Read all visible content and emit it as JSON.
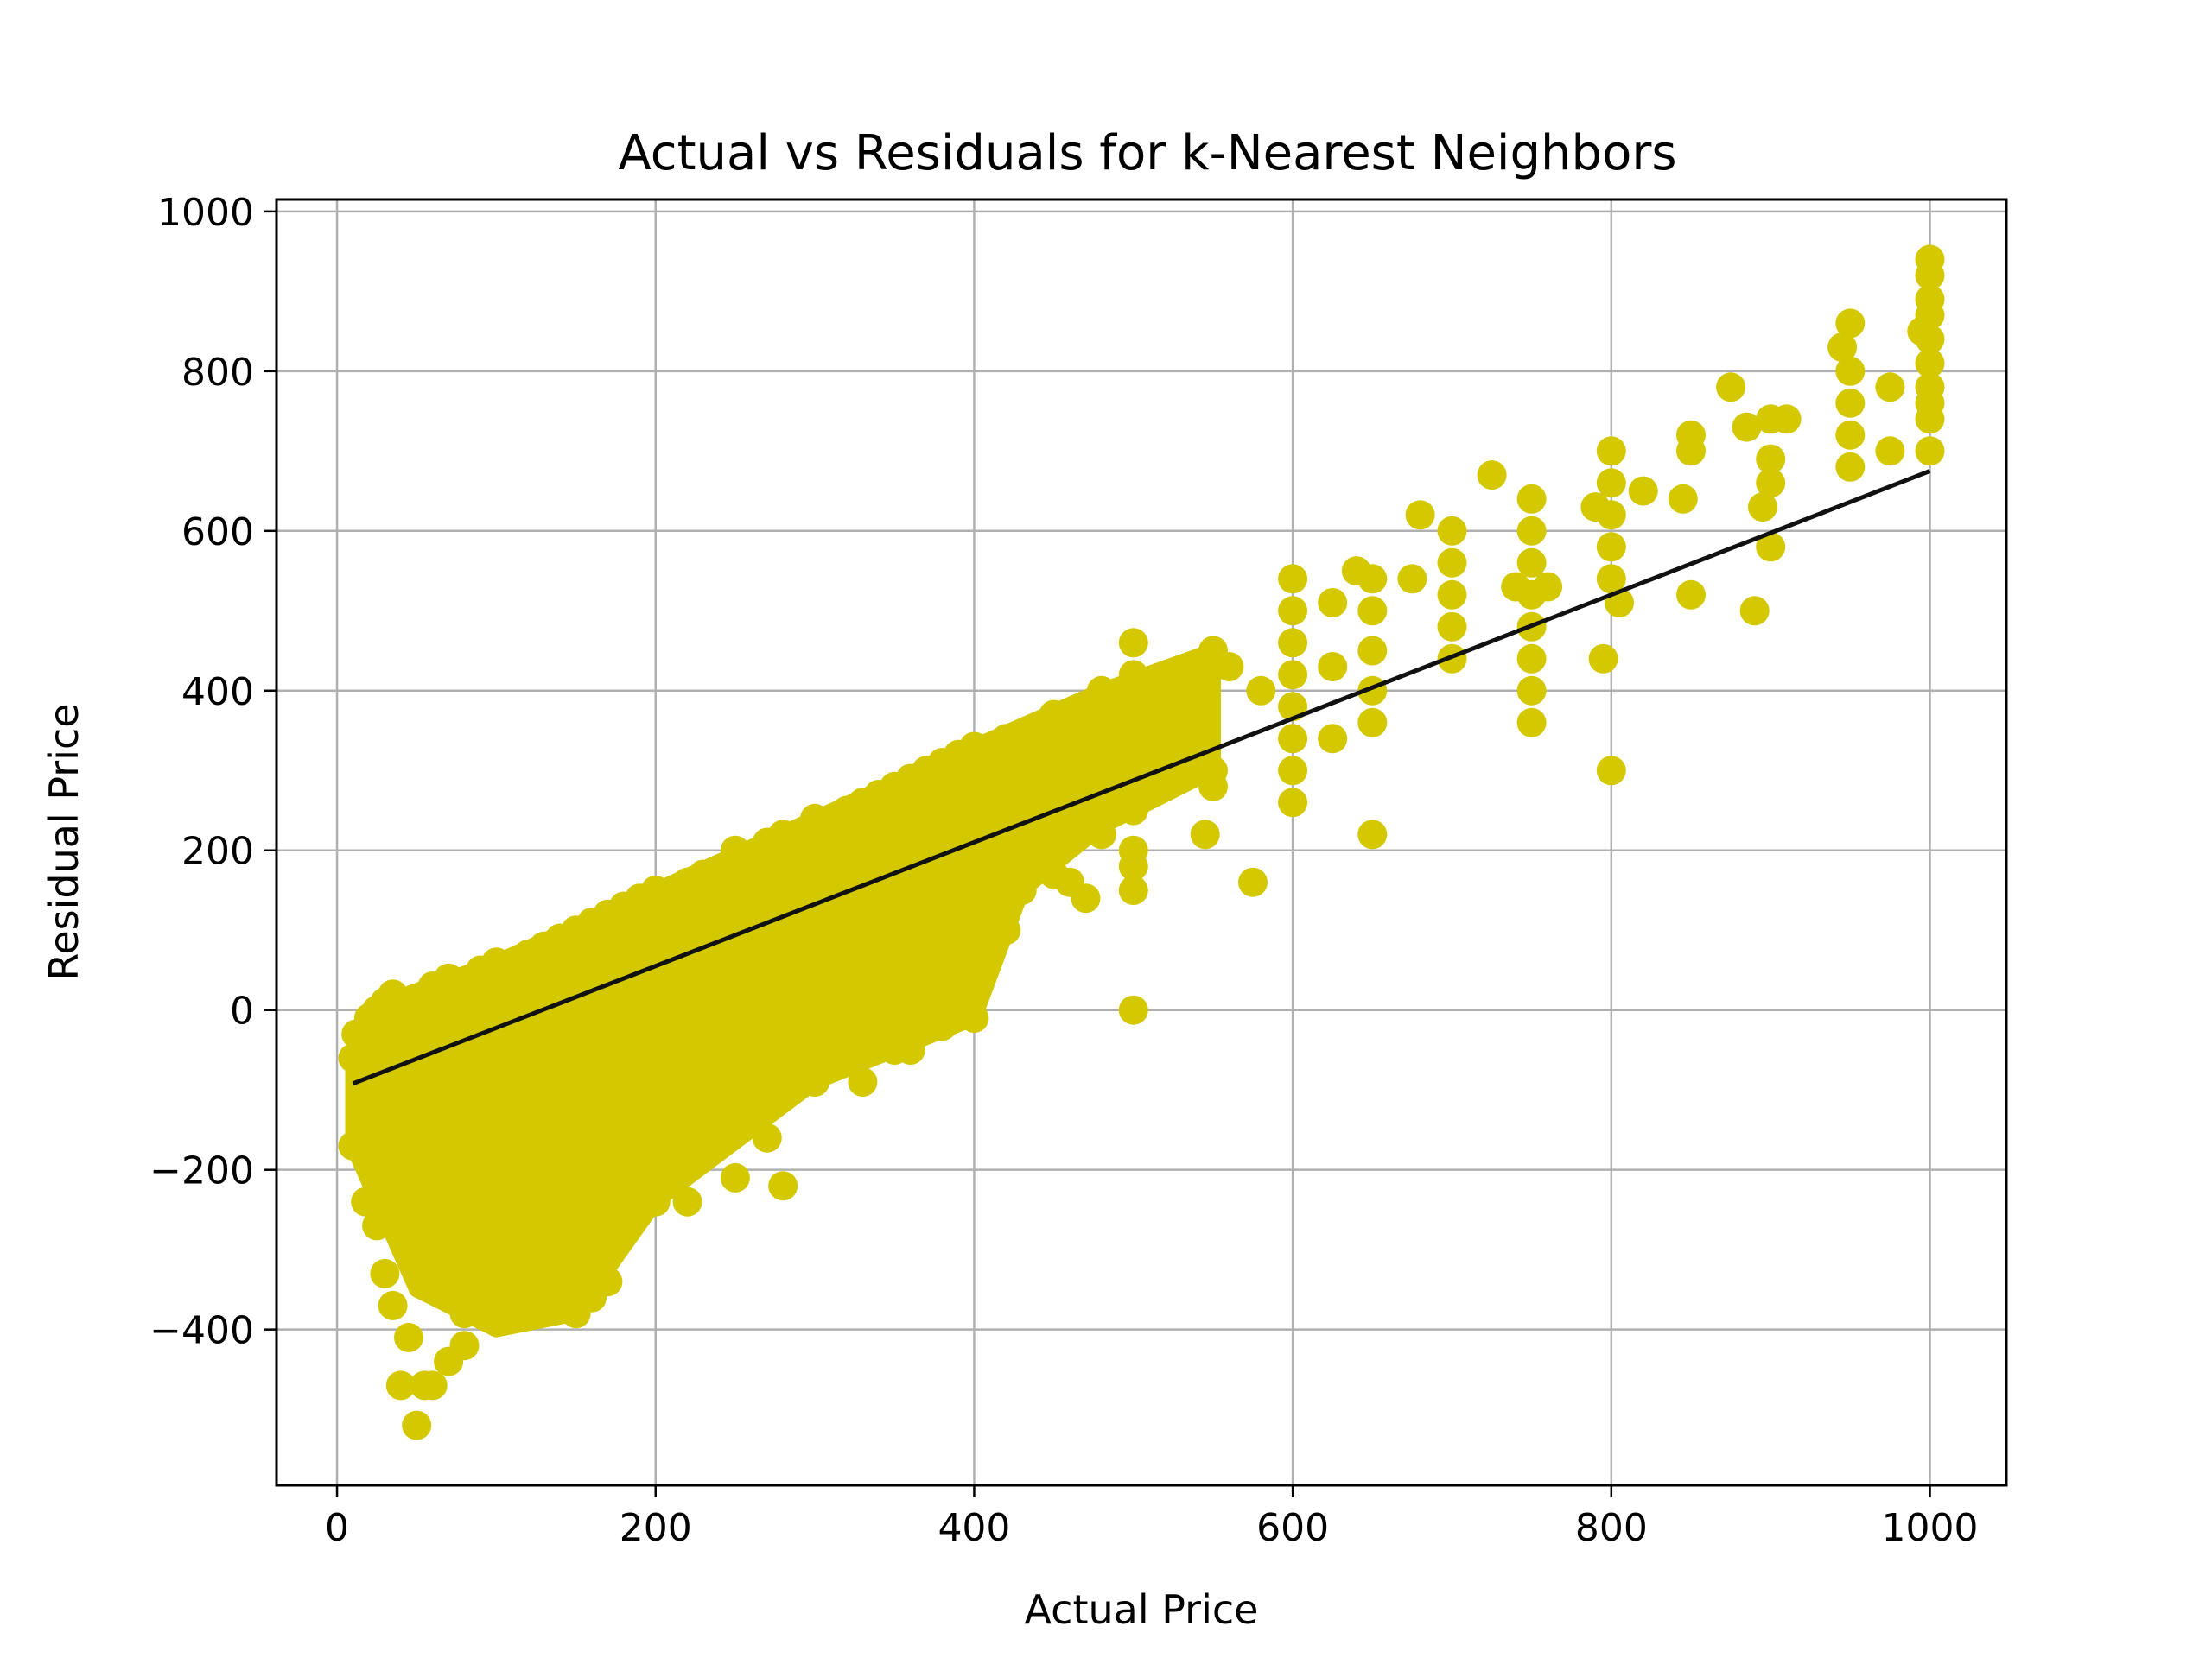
{
  "chart_data": {
    "type": "scatter",
    "title": "Actual vs Residuals for k-Nearest Neighbors",
    "xlabel": "Actual Price",
    "ylabel": "Residual Price",
    "xlim": [
      -38,
      1048
    ],
    "ylim": [
      -595,
      1015
    ],
    "xticks": [
      0,
      200,
      400,
      600,
      800,
      1000
    ],
    "yticks": [
      -400,
      -200,
      0,
      200,
      400,
      600,
      800,
      1000
    ],
    "xtick_labels": [
      "0",
      "200",
      "400",
      "600",
      "800",
      "1000"
    ],
    "ytick_labels": [
      "−400",
      "−200",
      "0",
      "200",
      "400",
      "600",
      "800",
      "1000"
    ],
    "grid": true,
    "legend": "none",
    "marker_color": "#d4c800",
    "line_color": "#111111",
    "series": [
      {
        "kind": "points",
        "points": [
          [
            10,
            -60
          ],
          [
            12,
            -30
          ],
          [
            15,
            -100
          ],
          [
            10,
            -170
          ],
          [
            18,
            -240
          ],
          [
            25,
            -270
          ],
          [
            30,
            -330
          ],
          [
            35,
            -370
          ],
          [
            40,
            -470
          ],
          [
            45,
            -410
          ],
          [
            50,
            -520
          ],
          [
            55,
            -470
          ],
          [
            60,
            -470
          ],
          [
            70,
            -440
          ],
          [
            80,
            -420
          ],
          [
            20,
            -10
          ],
          [
            25,
            0
          ],
          [
            30,
            10
          ],
          [
            35,
            20
          ],
          [
            40,
            5
          ],
          [
            45,
            -20
          ],
          [
            50,
            -50
          ],
          [
            60,
            30
          ],
          [
            70,
            40
          ],
          [
            80,
            20
          ],
          [
            90,
            50
          ],
          [
            100,
            60
          ],
          [
            110,
            40
          ],
          [
            120,
            70
          ],
          [
            130,
            80
          ],
          [
            140,
            90
          ],
          [
            150,
            100
          ],
          [
            160,
            110
          ],
          [
            170,
            120
          ],
          [
            180,
            130
          ],
          [
            190,
            140
          ],
          [
            200,
            150
          ],
          [
            210,
            140
          ],
          [
            220,
            160
          ],
          [
            230,
            170
          ],
          [
            250,
            200
          ],
          [
            260,
            190
          ],
          [
            270,
            210
          ],
          [
            280,
            220
          ],
          [
            300,
            240
          ],
          [
            310,
            230
          ],
          [
            320,
            250
          ],
          [
            330,
            260
          ],
          [
            340,
            270
          ],
          [
            350,
            280
          ],
          [
            360,
            290
          ],
          [
            370,
            300
          ],
          [
            380,
            310
          ],
          [
            390,
            320
          ],
          [
            400,
            330
          ],
          [
            410,
            320
          ],
          [
            420,
            340
          ],
          [
            430,
            330
          ],
          [
            450,
            370
          ],
          [
            460,
            360
          ],
          [
            470,
            380
          ],
          [
            480,
            400
          ],
          [
            500,
            460
          ],
          [
            500,
            420
          ],
          [
            500,
            380
          ],
          [
            500,
            350
          ],
          [
            500,
            300
          ],
          [
            500,
            250
          ],
          [
            500,
            200
          ],
          [
            500,
            180
          ],
          [
            500,
            150
          ],
          [
            500,
            0
          ],
          [
            520,
            400
          ],
          [
            540,
            360
          ],
          [
            550,
            450
          ],
          [
            550,
            300
          ],
          [
            550,
            280
          ],
          [
            560,
            430
          ],
          [
            575,
            160
          ],
          [
            580,
            400
          ],
          [
            600,
            540
          ],
          [
            600,
            500
          ],
          [
            600,
            460
          ],
          [
            600,
            420
          ],
          [
            600,
            380
          ],
          [
            600,
            340
          ],
          [
            600,
            300
          ],
          [
            600,
            260
          ],
          [
            625,
            510
          ],
          [
            625,
            430
          ],
          [
            625,
            340
          ],
          [
            640,
            550
          ],
          [
            650,
            540
          ],
          [
            650,
            500
          ],
          [
            650,
            450
          ],
          [
            650,
            400
          ],
          [
            650,
            360
          ],
          [
            650,
            220
          ],
          [
            675,
            540
          ],
          [
            680,
            620
          ],
          [
            700,
            600
          ],
          [
            700,
            560
          ],
          [
            700,
            520
          ],
          [
            700,
            480
          ],
          [
            700,
            440
          ],
          [
            725,
            670
          ],
          [
            740,
            530
          ],
          [
            750,
            640
          ],
          [
            750,
            600
          ],
          [
            750,
            560
          ],
          [
            750,
            520
          ],
          [
            750,
            480
          ],
          [
            750,
            440
          ],
          [
            750,
            400
          ],
          [
            750,
            360
          ],
          [
            760,
            530
          ],
          [
            790,
            630
          ],
          [
            795,
            440
          ],
          [
            800,
            700
          ],
          [
            800,
            660
          ],
          [
            800,
            620
          ],
          [
            800,
            580
          ],
          [
            800,
            540
          ],
          [
            800,
            300
          ],
          [
            805,
            510
          ],
          [
            820,
            650
          ],
          [
            845,
            640
          ],
          [
            850,
            720
          ],
          [
            850,
            700
          ],
          [
            850,
            520
          ],
          [
            875,
            780
          ],
          [
            885,
            730
          ],
          [
            890,
            500
          ],
          [
            895,
            630
          ],
          [
            900,
            740
          ],
          [
            900,
            690
          ],
          [
            900,
            660
          ],
          [
            900,
            580
          ],
          [
            910,
            740
          ],
          [
            945,
            830
          ],
          [
            950,
            860
          ],
          [
            950,
            800
          ],
          [
            950,
            760
          ],
          [
            950,
            720
          ],
          [
            950,
            680
          ],
          [
            975,
            780
          ],
          [
            975,
            700
          ],
          [
            995,
            850
          ],
          [
            1000,
            940
          ],
          [
            1000,
            920
          ],
          [
            1000,
            890
          ],
          [
            1000,
            870
          ],
          [
            1000,
            840
          ],
          [
            1000,
            810
          ],
          [
            1000,
            780
          ],
          [
            1000,
            760
          ],
          [
            1000,
            740
          ],
          [
            1000,
            700
          ],
          [
            100,
            -80
          ],
          [
            110,
            -120
          ],
          [
            120,
            -200
          ],
          [
            130,
            -250
          ],
          [
            140,
            -300
          ],
          [
            150,
            -380
          ],
          [
            160,
            -360
          ],
          [
            170,
            -340
          ],
          [
            90,
            -320
          ],
          [
            80,
            -380
          ],
          [
            70,
            -350
          ],
          [
            65,
            -300
          ],
          [
            60,
            -250
          ],
          [
            55,
            -200
          ],
          [
            50,
            -150
          ],
          [
            45,
            -100
          ],
          [
            40,
            -60
          ],
          [
            35,
            -130
          ],
          [
            30,
            -180
          ],
          [
            25,
            -220
          ],
          [
            200,
            -240
          ],
          [
            210,
            -180
          ],
          [
            220,
            -240
          ],
          [
            230,
            -120
          ],
          [
            240,
            -150
          ],
          [
            250,
            -210
          ],
          [
            260,
            -100
          ],
          [
            270,
            -160
          ],
          [
            280,
            -220
          ],
          [
            290,
            -60
          ],
          [
            300,
            -90
          ],
          [
            320,
            -60
          ],
          [
            330,
            -90
          ],
          [
            350,
            -50
          ],
          [
            360,
            -50
          ],
          [
            380,
            -20
          ],
          [
            390,
            10
          ],
          [
            400,
            -10
          ],
          [
            410,
            80
          ],
          [
            420,
            100
          ],
          [
            430,
            150
          ],
          [
            440,
            200
          ],
          [
            450,
            170
          ],
          [
            460,
            160
          ],
          [
            470,
            140
          ],
          [
            480,
            220
          ],
          [
            490,
            260
          ],
          [
            510,
            350
          ],
          [
            530,
            370
          ],
          [
            545,
            220
          ]
        ]
      },
      {
        "kind": "fit-line",
        "x": [
          10,
          1000
        ],
        "y": [
          -92,
          675
        ]
      }
    ]
  }
}
